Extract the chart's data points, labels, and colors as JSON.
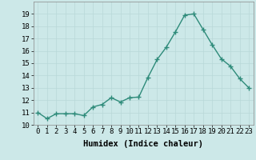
{
  "xlabel": "Humidex (Indice chaleur)",
  "x": [
    0,
    1,
    2,
    3,
    4,
    5,
    6,
    7,
    8,
    9,
    10,
    11,
    12,
    13,
    14,
    15,
    16,
    17,
    18,
    19,
    20,
    21,
    22,
    23
  ],
  "y": [
    11.0,
    10.5,
    10.9,
    10.9,
    10.9,
    10.75,
    11.45,
    11.65,
    12.2,
    11.85,
    12.2,
    12.25,
    13.85,
    15.3,
    16.3,
    17.55,
    18.9,
    19.0,
    17.75,
    16.5,
    15.35,
    14.75,
    13.75,
    13.0
  ],
  "ylim": [
    10,
    20
  ],
  "xlim_min": -0.5,
  "xlim_max": 23.5,
  "yticks": [
    10,
    11,
    12,
    13,
    14,
    15,
    16,
    17,
    18,
    19
  ],
  "xticks": [
    0,
    1,
    2,
    3,
    4,
    5,
    6,
    7,
    8,
    9,
    10,
    11,
    12,
    13,
    14,
    15,
    16,
    17,
    18,
    19,
    20,
    21,
    22,
    23
  ],
  "xtick_labels": [
    "0",
    "1",
    "2",
    "3",
    "4",
    "5",
    "6",
    "7",
    "8",
    "9",
    "10",
    "11",
    "12",
    "13",
    "14",
    "15",
    "16",
    "17",
    "18",
    "19",
    "20",
    "21",
    "22",
    "23"
  ],
  "line_color": "#2e8b7a",
  "marker": "+",
  "marker_size": 4,
  "marker_lw": 1.0,
  "bg_color": "#cce8e8",
  "grid_color": "#b8d8d8",
  "tick_fontsize": 6.5,
  "xlabel_fontsize": 7.5,
  "ylabel_fontsize": 6.5,
  "line_width": 1.0
}
